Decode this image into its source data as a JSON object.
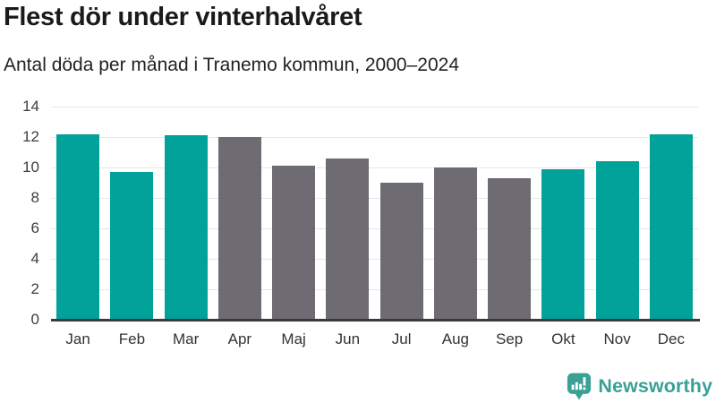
{
  "header": {
    "title": "Flest dör under vinterhalvåret",
    "subtitle": "Antal döda per månad i Tranemo kommun, 2000–2024"
  },
  "colors": {
    "highlight_teal": "#00a29a",
    "neutral_gray": "#6e6b73",
    "gridline": "#e7e7e7",
    "axis_line": "#3b3b3b",
    "logo_teal": "#3ba096"
  },
  "chart_data": {
    "type": "bar",
    "title": "Flest dör under vinterhalvåret",
    "subtitle": "Antal döda per månad i Tranemo kommun, 2000–2024",
    "xlabel": "",
    "ylabel": "",
    "categories": [
      "Jan",
      "Feb",
      "Mar",
      "Apr",
      "Maj",
      "Jun",
      "Jul",
      "Aug",
      "Sep",
      "Okt",
      "Nov",
      "Dec"
    ],
    "values": [
      12.2,
      9.7,
      12.1,
      12.0,
      10.1,
      10.6,
      9.0,
      10.0,
      9.3,
      9.9,
      10.4,
      12.2
    ],
    "bar_colors": [
      "teal",
      "teal",
      "teal",
      "gray",
      "gray",
      "gray",
      "gray",
      "gray",
      "gray",
      "teal",
      "teal",
      "teal"
    ],
    "highlighted_months": [
      "Jan",
      "Feb",
      "Mar",
      "Okt",
      "Nov",
      "Dec"
    ],
    "ylim": [
      0,
      14
    ],
    "yticks": [
      0,
      2,
      4,
      6,
      8,
      10,
      12,
      14
    ],
    "grid": true,
    "legend": "none"
  },
  "footer": {
    "brand": "Newsworthy"
  }
}
